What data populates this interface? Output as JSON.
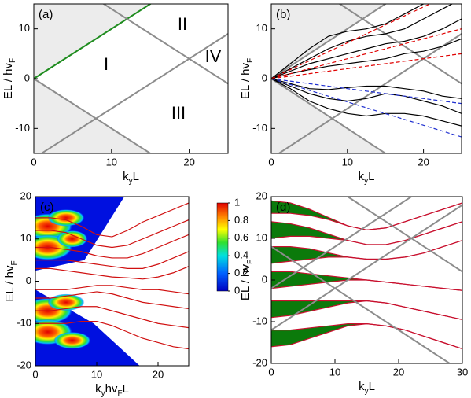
{
  "chart_data": [
    {
      "type": "line",
      "label": "(a)",
      "xlim": [
        0,
        25
      ],
      "ylim": [
        -15,
        15
      ],
      "xticks": [
        0,
        10,
        20
      ],
      "yticks": [
        -10,
        0,
        10
      ],
      "xlabel": [
        "k",
        "y",
        "L"
      ],
      "ylabel": [
        "EL / hv",
        "F"
      ],
      "annotations": [
        "I",
        "II",
        "III",
        "IV"
      ],
      "series": [
        {
          "x": [
            0,
            25
          ],
          "values": [
            0,
            25
          ],
          "color": "#1e8c1e",
          "shade": "above"
        },
        {
          "x": [
            0,
            25
          ],
          "values": [
            0,
            -25
          ],
          "color": "#8c8c8c",
          "shade": "below"
        },
        {
          "x": [
            0,
            25
          ],
          "values": [
            -16,
            9
          ],
          "color": "#8c8c8c"
        },
        {
          "x": [
            0,
            25
          ],
          "values": [
            24,
            -1
          ],
          "color": "#8c8c8c"
        }
      ]
    },
    {
      "type": "line",
      "label": "(b)",
      "xlim": [
        0,
        25
      ],
      "ylim": [
        -15,
        15
      ],
      "xticks": [
        0,
        10,
        20
      ],
      "yticks": [
        -10,
        0,
        10
      ],
      "xlabel": [
        "k",
        "y",
        "L"
      ],
      "ylabel": [
        "EL / hv",
        "F"
      ],
      "series": [
        {
          "x": [
            0,
            25
          ],
          "values": [
            0,
            25
          ],
          "color": "#8c8c8c",
          "shade": "above"
        },
        {
          "x": [
            0,
            25
          ],
          "values": [
            0,
            -25
          ],
          "color": "#8c8c8c",
          "shade": "below"
        },
        {
          "x": [
            0,
            25
          ],
          "values": [
            -16,
            9
          ],
          "color": "#8c8c8c"
        },
        {
          "x": [
            0,
            25
          ],
          "values": [
            24,
            -1
          ],
          "color": "#8c8c8c"
        },
        {
          "x": [
            0,
            2.5,
            5,
            7.5,
            10,
            12.5,
            15,
            17.5,
            20,
            22.5,
            25
          ],
          "values": [
            0,
            3,
            6,
            8.5,
            9.5,
            10,
            11,
            13,
            15,
            17,
            19
          ],
          "color": "#000000"
        },
        {
          "x": [
            0,
            2.5,
            5,
            7.5,
            10,
            12.5,
            15,
            17.5,
            20,
            22.5,
            25
          ],
          "values": [
            0,
            2,
            4,
            6,
            7.5,
            8.5,
            9,
            10,
            12,
            14,
            16
          ],
          "color": "#000000"
        },
        {
          "x": [
            0,
            2.5,
            5,
            7.5,
            10,
            12.5,
            15,
            17.5,
            20,
            22.5,
            25
          ],
          "values": [
            0,
            1.5,
            3,
            4,
            5,
            6,
            7,
            7.5,
            8.5,
            10,
            12
          ],
          "color": "#000000"
        },
        {
          "x": [
            0,
            2.5,
            5,
            7.5,
            10,
            12.5,
            15,
            17.5,
            20,
            22.5,
            25
          ],
          "values": [
            0,
            1,
            1.8,
            2.5,
            3,
            3.5,
            4,
            5,
            5.5,
            6.5,
            8
          ],
          "color": "#000000"
        },
        {
          "x": [
            0,
            2.5,
            5,
            7.5,
            10,
            12.5,
            15,
            17.5,
            20,
            22.5,
            25
          ],
          "values": [
            0,
            -1,
            -2,
            -2.2,
            -1.8,
            -1.5,
            -1.5,
            -2,
            -2.5,
            -3.5,
            -4
          ],
          "color": "#000000"
        },
        {
          "x": [
            0,
            2.5,
            5,
            7.5,
            10,
            12.5,
            15,
            17.5,
            20,
            22.5,
            25
          ],
          "values": [
            0,
            -1.5,
            -3,
            -4,
            -4.5,
            -4,
            -3,
            -3.5,
            -4.5,
            -5.5,
            -7
          ],
          "color": "#000000"
        },
        {
          "x": [
            0,
            2.5,
            5,
            7.5,
            10,
            12.5,
            15,
            17.5,
            20,
            22.5,
            25
          ],
          "values": [
            0,
            -2,
            -4.5,
            -6,
            -7,
            -7.5,
            -7,
            -7,
            -7.5,
            -8.5,
            -9.5
          ],
          "color": "#000000"
        },
        {
          "x": [
            0,
            25
          ],
          "values": [
            0,
            18
          ],
          "color": "#e00000",
          "dash": true
        },
        {
          "x": [
            0,
            25
          ],
          "values": [
            0,
            10
          ],
          "color": "#e00000",
          "dash": true
        },
        {
          "x": [
            0,
            25
          ],
          "values": [
            0,
            5
          ],
          "color": "#e00000",
          "dash": true
        },
        {
          "x": [
            0,
            25
          ],
          "values": [
            0,
            -11.7
          ],
          "color": "#1f2fd0",
          "dash": true
        },
        {
          "x": [
            0,
            25
          ],
          "values": [
            0,
            -5
          ],
          "color": "#1f2fd0",
          "dash": true
        }
      ]
    },
    {
      "type": "line",
      "label": "(c)",
      "xlim": [
        0,
        25
      ],
      "ylim": [
        -20,
        20
      ],
      "xticks": [
        0,
        10,
        20
      ],
      "yticks": [
        -20,
        -10,
        0,
        10,
        20
      ],
      "xlabel": [
        "k",
        "y",
        "hv",
        "F",
        "L"
      ],
      "ylabel": [
        "EL / hv",
        "F"
      ],
      "colorbar": {
        "lim": [
          0,
          1
        ],
        "ticks": [
          0,
          0.2,
          0.4,
          0.6,
          0.8,
          1
        ]
      },
      "series": [
        {
          "x": [
            0,
            2.5,
            5,
            7.5,
            10,
            12.5,
            15,
            17.5,
            20,
            22.5,
            25
          ],
          "values": [
            15,
            15,
            14.5,
            13,
            11,
            10.5,
            12,
            14,
            15.5,
            17,
            18.5
          ],
          "color": "#d01010"
        },
        {
          "x": [
            0,
            2.5,
            5,
            7.5,
            10,
            12.5,
            15,
            17.5,
            20,
            22.5,
            25
          ],
          "values": [
            12,
            12,
            11.5,
            10,
            8.5,
            8,
            8.5,
            10,
            11.5,
            13,
            14.5
          ],
          "color": "#d01010"
        },
        {
          "x": [
            0,
            2.5,
            5,
            7.5,
            10,
            12.5,
            15,
            17.5,
            20,
            22.5,
            25
          ],
          "values": [
            8,
            8,
            7.5,
            7,
            6,
            5.5,
            5.5,
            6.5,
            8,
            9.5,
            11
          ],
          "color": "#d01010"
        },
        {
          "x": [
            0,
            2.5,
            5,
            7.5,
            10,
            12.5,
            15,
            17.5,
            20,
            22.5,
            25
          ],
          "values": [
            5,
            5,
            5,
            4.5,
            4,
            3.5,
            3,
            3,
            4,
            5.5,
            7
          ],
          "color": "#d01010"
        },
        {
          "x": [
            0,
            2.5,
            5,
            7.5,
            10,
            12.5,
            15,
            17.5,
            20,
            22.5,
            25
          ],
          "values": [
            3,
            3,
            2.5,
            2,
            1.5,
            1,
            0.8,
            0.5,
            1,
            2,
            3.5
          ],
          "color": "#d01010"
        },
        {
          "x": [
            0,
            2.5,
            5,
            7.5,
            10,
            12.5,
            15,
            17.5,
            20,
            22.5,
            25
          ],
          "values": [
            -2,
            -2,
            -2,
            -1.5,
            -1,
            -1,
            -1.5,
            -2,
            -2,
            -2.5,
            -3
          ],
          "color": "#d01010"
        },
        {
          "x": [
            0,
            2.5,
            5,
            7.5,
            10,
            12.5,
            15,
            17.5,
            20,
            22.5,
            25
          ],
          "values": [
            -4,
            -4,
            -3.5,
            -3,
            -2.5,
            -3,
            -4,
            -5,
            -5.5,
            -6,
            -6.5
          ],
          "color": "#d01010"
        },
        {
          "x": [
            0,
            2.5,
            5,
            7.5,
            10,
            12.5,
            15,
            17.5,
            20,
            22.5,
            25
          ],
          "values": [
            -7,
            -7,
            -6.5,
            -6,
            -6,
            -7,
            -8,
            -9,
            -10,
            -10.5,
            -11
          ],
          "color": "#d01010"
        },
        {
          "x": [
            0,
            2.5,
            5,
            7.5,
            10,
            12.5,
            15,
            17.5,
            20,
            22.5,
            25
          ],
          "values": [
            -10,
            -10,
            -10,
            -9.5,
            -9.5,
            -10.5,
            -12,
            -13.5,
            -14.5,
            -15.5,
            -16
          ],
          "color": "#d01010"
        }
      ]
    },
    {
      "type": "line",
      "label": "(d)",
      "xlim": [
        0,
        30
      ],
      "ylim": [
        -20,
        20
      ],
      "xticks": [
        0,
        10,
        20,
        30
      ],
      "yticks": [
        -20,
        -10,
        0,
        10,
        20
      ],
      "xlabel": [
        "k",
        "y",
        "L"
      ],
      "ylabel": [
        "EL / hv",
        "F"
      ],
      "series": [
        {
          "x": [
            0,
            3,
            6,
            9,
            12,
            15,
            18,
            21,
            24,
            27,
            30
          ],
          "values": [
            19,
            18.5,
            17,
            15,
            13,
            12,
            12.5,
            14,
            15.5,
            17,
            18.5
          ],
          "color": "#c8102e",
          "fill": "#0b7a0b"
        },
        {
          "x": [
            0,
            3,
            6,
            9,
            12,
            15,
            18,
            21,
            24,
            27,
            30
          ],
          "values": [
            16,
            16,
            15.5,
            14.5,
            13,
            12,
            12.5,
            14,
            15.5,
            17,
            18.5
          ],
          "color": "#c8102e"
        },
        {
          "x": [
            0,
            3,
            6,
            9,
            12,
            15,
            18,
            21,
            24,
            27,
            30
          ],
          "values": [
            14,
            13.5,
            12.5,
            11,
            9.5,
            8.5,
            8.5,
            9.5,
            11,
            12.5,
            14
          ],
          "color": "#c8102e",
          "fill": "#0b7a0b"
        },
        {
          "x": [
            0,
            3,
            6,
            9,
            12,
            15,
            18,
            21,
            24,
            27,
            30
          ],
          "values": [
            10,
            10.5,
            10.5,
            10,
            9.5,
            8.5,
            8.5,
            9.5,
            11,
            12.5,
            14
          ],
          "color": "#c8102e"
        },
        {
          "x": [
            0,
            3,
            6,
            9,
            12,
            15,
            18,
            21,
            24,
            27,
            30
          ],
          "values": [
            8,
            8,
            7.5,
            6.5,
            5.5,
            5,
            5,
            5.5,
            6.5,
            8,
            9.5
          ],
          "color": "#c8102e",
          "fill": "#0b7a0b"
        },
        {
          "x": [
            0,
            3,
            6,
            9,
            12,
            15,
            18,
            21,
            24,
            27,
            30
          ],
          "values": [
            4,
            4.5,
            5,
            5.5,
            5.5,
            5,
            5,
            5.5,
            6.5,
            8,
            9.5
          ],
          "color": "#c8102e"
        },
        {
          "x": [
            0,
            3,
            6,
            9,
            12,
            15,
            18,
            21,
            24,
            27,
            30
          ],
          "values": [
            2,
            2,
            1.5,
            1,
            0.5,
            0,
            -0.5,
            -1,
            -1.5,
            -2,
            -2.5
          ],
          "color": "#c8102e",
          "fill": "#0b7a0b"
        },
        {
          "x": [
            0,
            3,
            6,
            9,
            12,
            15,
            18,
            21,
            24,
            27,
            30
          ],
          "values": [
            -2,
            -1.5,
            -1,
            -0.5,
            0,
            0,
            -0.5,
            -1,
            -1.5,
            -2,
            -2.5
          ],
          "color": "#c8102e"
        },
        {
          "x": [
            0,
            3,
            6,
            9,
            12,
            15,
            18,
            21,
            24,
            27,
            30
          ],
          "values": [
            -5,
            -5,
            -5,
            -5,
            -5,
            -5,
            -5.5,
            -6.5,
            -7.5,
            -8.5,
            -9.5
          ],
          "color": "#c8102e",
          "fill": "#0b7a0b"
        },
        {
          "x": [
            0,
            3,
            6,
            9,
            12,
            15,
            18,
            21,
            24,
            27,
            30
          ],
          "values": [
            -9,
            -8.5,
            -7.5,
            -6.5,
            -5.5,
            -5,
            -5.5,
            -6.5,
            -7.5,
            -8.5,
            -9.5
          ],
          "color": "#c8102e"
        },
        {
          "x": [
            0,
            3,
            6,
            9,
            12,
            15,
            18,
            21,
            24,
            27,
            30
          ],
          "values": [
            -12,
            -12,
            -11.5,
            -11,
            -10.5,
            -10.5,
            -11,
            -12,
            -13.5,
            -15,
            -16.5
          ],
          "color": "#c8102e",
          "fill": "#0b7a0b"
        },
        {
          "x": [
            0,
            3,
            6,
            9,
            12,
            15,
            18,
            21,
            24,
            27,
            30
          ],
          "values": [
            -16,
            -15.5,
            -14,
            -12.5,
            -11,
            -10.5,
            -11,
            -12,
            -13.5,
            -15,
            -16.5
          ],
          "color": "#c8102e"
        },
        {
          "x": [
            0,
            30
          ],
          "values": [
            32,
            2
          ],
          "color": "#8c8c8c"
        },
        {
          "x": [
            0,
            30
          ],
          "values": [
            -12,
            18
          ],
          "color": "#8c8c8c"
        },
        {
          "x": [
            0,
            30
          ],
          "values": [
            8,
            -22
          ],
          "color": "#8c8c8c"
        },
        {
          "x": [
            0,
            30
          ],
          "values": [
            -2,
            28
          ],
          "color": "#8c8c8c"
        }
      ]
    }
  ]
}
